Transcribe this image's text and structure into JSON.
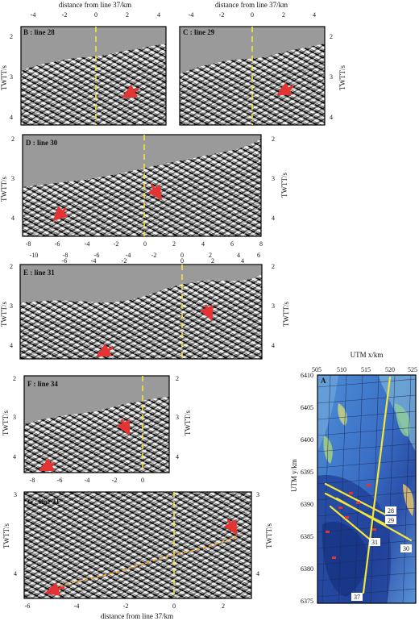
{
  "figure": {
    "common": {
      "axis_x_label": "distance from line 37/km",
      "axis_y_label": "TWTT/s"
    },
    "panels": [
      {
        "id": "B",
        "label": "B : line 28",
        "x_ticks": [
          "-4",
          "-2",
          "0",
          "2",
          "4"
        ],
        "x_ticks_bottom": [],
        "y_ticks": [
          "2",
          "3",
          "4"
        ],
        "y_range": [
          1.75,
          4.2
        ]
      },
      {
        "id": "C",
        "label": "C : line 29",
        "x_ticks": [
          "-4",
          "-2",
          "0",
          "2",
          "4"
        ],
        "x_ticks_bottom": [],
        "y_ticks": [
          "2",
          "3",
          "4"
        ],
        "y_range": [
          1.75,
          4.2
        ]
      },
      {
        "id": "D",
        "label": "D : line 30",
        "x_ticks": [
          "-8",
          "-6",
          "-4",
          "-2",
          "0",
          "2",
          "4",
          "6",
          "8"
        ],
        "x_ticks_bottom": [
          "-10",
          "-8",
          "-6",
          "-4",
          "-2",
          "0",
          "2",
          "4",
          "6"
        ],
        "y_ticks": [
          "2",
          "3",
          "4"
        ],
        "y_range": [
          2,
          4.5
        ]
      },
      {
        "id": "E",
        "label": "E : line 31",
        "x_ticks": [],
        "x_ticks_top": [
          "-6",
          "-4",
          "-2",
          "0",
          "2",
          "4"
        ],
        "y_ticks": [
          "2",
          "3",
          "4"
        ],
        "y_range": [
          2,
          4.35
        ]
      },
      {
        "id": "F",
        "label": "F : line 34",
        "x_ticks": [
          "-8",
          "-6",
          "-4",
          "-2",
          "0"
        ],
        "y_ticks": [
          "2",
          "3",
          "4"
        ],
        "y_range": [
          2,
          4.45
        ]
      },
      {
        "id": "G",
        "label": "G : line 31",
        "x_ticks": [
          "-6",
          "-4",
          "-2",
          "0",
          "2"
        ],
        "y_ticks": [
          "3",
          "4"
        ],
        "y_range": [
          3,
          4.5
        ]
      }
    ],
    "map": {
      "label": "A",
      "title": "UTM x/km",
      "ylabel": "UTM y/km",
      "x_ticks": [
        "505",
        "510",
        "515",
        "520",
        "525"
      ],
      "y_ticks": [
        "6410",
        "6405",
        "6400",
        "6395",
        "6390",
        "6385",
        "6380",
        "6375"
      ],
      "line_labels": [
        "28",
        "29",
        "30",
        "31",
        "37"
      ]
    }
  },
  "colors": {
    "gray": "#9a9a9a",
    "arrow": "#e53333",
    "yellow_line": "#f3e63a",
    "map_blue": "#3a6fc6"
  }
}
